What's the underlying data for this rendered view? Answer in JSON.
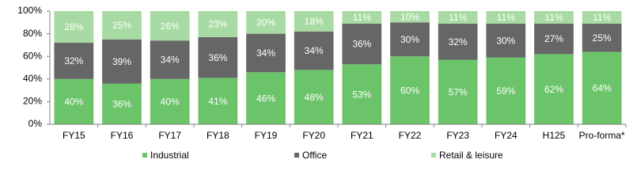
{
  "chart_data": {
    "type": "stacked_bar",
    "categories": [
      "FY15",
      "FY16",
      "FY17",
      "FY18",
      "FY19",
      "FY20",
      "FY21",
      "FY22",
      "FY23",
      "FY24",
      "H125",
      "Pro-forma*"
    ],
    "series": [
      {
        "name": "Industrial",
        "color": "#6cc46a",
        "values": [
          40,
          36,
          40,
          41,
          46,
          48,
          53,
          60,
          57,
          59,
          62,
          64
        ],
        "value_labels": [
          "40%",
          "36%",
          "40%",
          "41%",
          "46%",
          "48%",
          "53%",
          "60%",
          "57%",
          "59%",
          "62%",
          "64%"
        ]
      },
      {
        "name": "Office",
        "color": "#666666",
        "values": [
          32,
          39,
          34,
          36,
          34,
          34,
          36,
          30,
          32,
          30,
          27,
          25
        ],
        "value_labels": [
          "32%",
          "39%",
          "34%",
          "36%",
          "34%",
          "34%",
          "36%",
          "30%",
          "32%",
          "30%",
          "27%",
          "25%"
        ]
      },
      {
        "name": "Retail & leisure",
        "color": "#a8dba3",
        "values": [
          28,
          25,
          26,
          23,
          20,
          18,
          11,
          10,
          11,
          11,
          11,
          11
        ],
        "value_labels": [
          "28%",
          "25%",
          "26%",
          "23%",
          "20%",
          "18%",
          "11%",
          "10%",
          "11%",
          "11%",
          "11%",
          "11%"
        ]
      }
    ],
    "ylim": [
      0,
      100
    ],
    "yticks": [
      {
        "value": 0,
        "label": "0%"
      },
      {
        "value": 20,
        "label": "20%"
      },
      {
        "value": 40,
        "label": "40%"
      },
      {
        "value": 60,
        "label": "60%"
      },
      {
        "value": 80,
        "label": "80%"
      },
      {
        "value": 100,
        "label": "100%"
      }
    ],
    "grid": false
  }
}
